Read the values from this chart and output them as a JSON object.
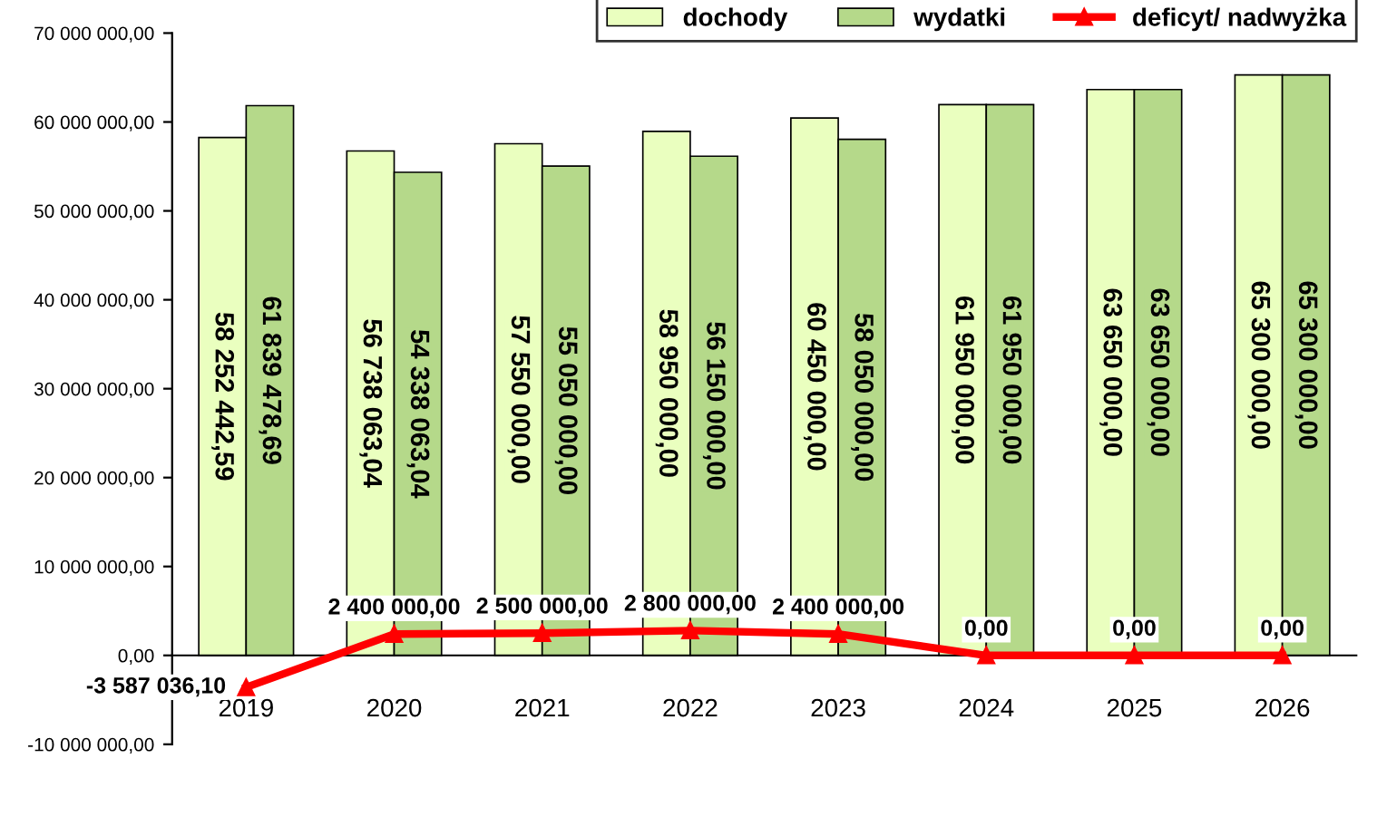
{
  "chart_data": {
    "type": "bar",
    "categories": [
      "2019",
      "2020",
      "2021",
      "2022",
      "2023",
      "2024",
      "2025",
      "2026"
    ],
    "series": [
      {
        "name": "dochody",
        "type": "bar",
        "color": "#eaffbf",
        "values": [
          58252442.59,
          56738063.04,
          57550000,
          58950000,
          60450000,
          61950000,
          63650000,
          65300000
        ],
        "value_labels": [
          "58 252 442,59",
          "56 738 063,04",
          "57 550 000,00",
          "58 950 000,00",
          "60 450 000,00",
          "61 950 000,00",
          "63 650 000,00",
          "65 300 000,00"
        ]
      },
      {
        "name": "wydatki",
        "type": "bar",
        "color": "#b5d98a",
        "values": [
          61839478.69,
          54338063.04,
          55050000,
          56150000,
          58050000,
          61950000,
          63650000,
          65300000
        ],
        "value_labels": [
          "61 839 478,69",
          "54 338 063,04",
          "55 050 000,00",
          "56 150 000,00",
          "58 050 000,00",
          "61 950 000,00",
          "63 650 000,00",
          "65 300 000,00"
        ]
      },
      {
        "name": "deficyt/ nadwyżka",
        "type": "line",
        "color": "#ff0000",
        "marker": "triangle",
        "values": [
          -3587036.1,
          2400000,
          2500000,
          2800000,
          2400000,
          0,
          0,
          0
        ],
        "value_labels": [
          "-3 587 036,10",
          "2 400 000,00",
          "2 500 000,00",
          "2 800 000,00",
          "2 400 000,00",
          "0,00",
          "0,00",
          "0,00"
        ]
      }
    ],
    "ylim": [
      -10000000,
      70000000
    ],
    "yticks": [
      {
        "value": -10000000,
        "label": "-10 000 000,00"
      },
      {
        "value": 0,
        "label": "0,00"
      },
      {
        "value": 10000000,
        "label": "10 000 000,00"
      },
      {
        "value": 20000000,
        "label": "20 000 000,00"
      },
      {
        "value": 30000000,
        "label": "30 000 000,00"
      },
      {
        "value": 40000000,
        "label": "40 000 000,00"
      },
      {
        "value": 50000000,
        "label": "50 000 000,00"
      },
      {
        "value": 60000000,
        "label": "60 000 000,00"
      },
      {
        "value": 70000000,
        "label": "70 000 000,00"
      }
    ],
    "legend": "top right",
    "grid": false
  }
}
